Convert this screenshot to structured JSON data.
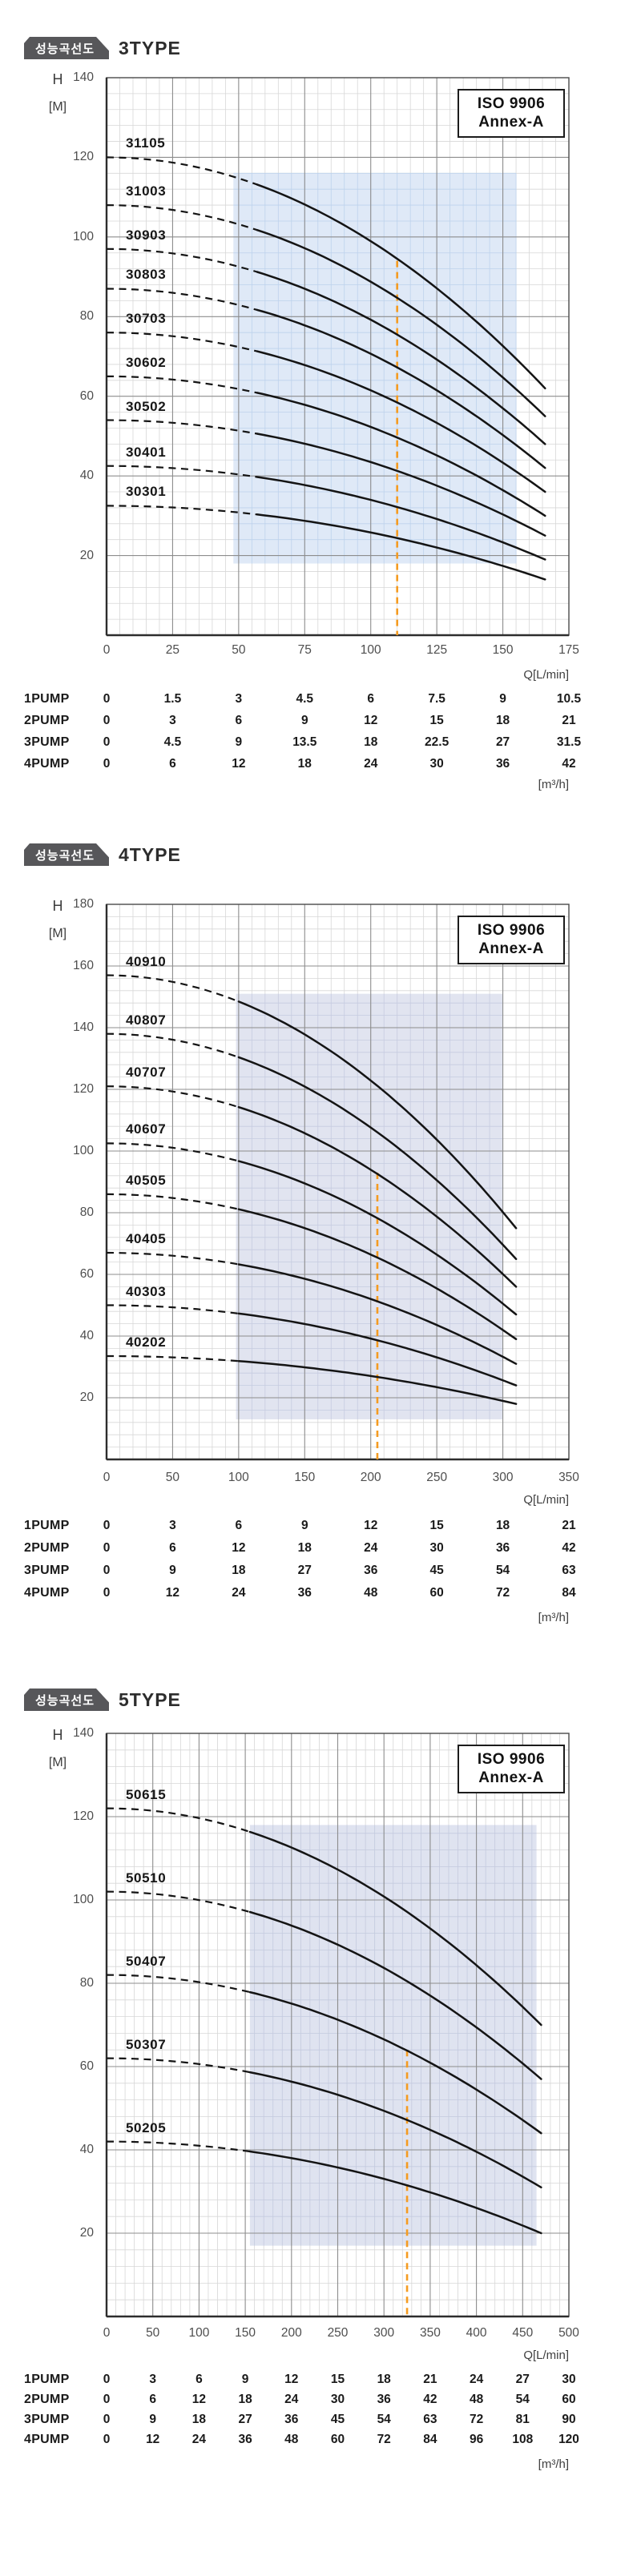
{
  "page": {
    "background": "#ffffff"
  },
  "sections": [
    {
      "badge_label": "성능곡선도",
      "title": "3TYPE",
      "iso_lines": [
        "ISO 9906",
        "Annex-A"
      ],
      "y_axis": {
        "symbol": "H",
        "unit": "[M]",
        "ticks": [
          140,
          120,
          100,
          80,
          60,
          40,
          20
        ]
      },
      "x_axis": {
        "unit": "Q[L/min]",
        "ticks": [
          0,
          25,
          50,
          75,
          100,
          125,
          150,
          175
        ]
      },
      "table": {
        "unit": "[m³/h]",
        "rows": [
          {
            "label": "1PUMP",
            "values": [
              0,
              1.5,
              3,
              4.5,
              6,
              7.5,
              9,
              10.5
            ]
          },
          {
            "label": "2PUMP",
            "values": [
              0,
              3,
              6,
              9,
              12,
              15,
              18,
              21
            ]
          },
          {
            "label": "3PUMP",
            "values": [
              0,
              4.5,
              9,
              13.5,
              18,
              22.5,
              27,
              31.5
            ]
          },
          {
            "label": "4PUMP",
            "values": [
              0,
              6,
              12,
              18,
              24,
              30,
              36,
              42
            ]
          }
        ]
      }
    },
    {
      "badge_label": "성능곡선도",
      "title": "4TYPE",
      "iso_lines": [
        "ISO 9906",
        "Annex-A"
      ],
      "y_axis": {
        "symbol": "H",
        "unit": "[M]",
        "ticks": [
          180,
          160,
          140,
          120,
          100,
          80,
          60,
          40,
          20
        ]
      },
      "x_axis": {
        "unit": "Q[L/min]",
        "ticks": [
          0,
          50,
          100,
          150,
          200,
          250,
          300,
          350
        ]
      },
      "table": {
        "unit": "[m³/h]",
        "rows": [
          {
            "label": "1PUMP",
            "values": [
              0,
              3,
              6,
              9,
              12,
              15,
              18,
              21
            ]
          },
          {
            "label": "2PUMP",
            "values": [
              0,
              6,
              12,
              18,
              24,
              30,
              36,
              42
            ]
          },
          {
            "label": "3PUMP",
            "values": [
              0,
              9,
              18,
              27,
              36,
              45,
              54,
              63
            ]
          },
          {
            "label": "4PUMP",
            "values": [
              0,
              12,
              24,
              36,
              48,
              60,
              72,
              84
            ]
          }
        ]
      }
    },
    {
      "badge_label": "성능곡선도",
      "title": "5TYPE",
      "iso_lines": [
        "ISO 9906",
        "Annex-A"
      ],
      "y_axis": {
        "symbol": "H",
        "unit": "[M]",
        "ticks": [
          140,
          120,
          100,
          80,
          60,
          40,
          20
        ]
      },
      "x_axis": {
        "unit": "Q[L/min]",
        "ticks": [
          0,
          50,
          100,
          150,
          200,
          250,
          300,
          350,
          400,
          450,
          500
        ]
      },
      "table": {
        "unit": "[m³/h]",
        "rows": [
          {
            "label": "1PUMP",
            "values": [
              0,
              3,
              6,
              9,
              12,
              15,
              18,
              21,
              24,
              27,
              30
            ]
          },
          {
            "label": "2PUMP",
            "values": [
              0,
              6,
              12,
              18,
              24,
              30,
              36,
              42,
              48,
              54,
              60
            ]
          },
          {
            "label": "3PUMP",
            "values": [
              0,
              9,
              18,
              27,
              36,
              45,
              54,
              63,
              72,
              81,
              90
            ]
          },
          {
            "label": "4PUMP",
            "values": [
              0,
              12,
              24,
              36,
              48,
              60,
              72,
              84,
              96,
              108,
              120
            ]
          }
        ]
      }
    }
  ],
  "chart_data": [
    {
      "type": "line",
      "title": "3TYPE pump performance curves",
      "xlabel": "Q[L/min]",
      "ylabel": "H [M]",
      "xlim": [
        0,
        175
      ],
      "ylim": [
        0,
        140
      ],
      "x_ticks": [
        0,
        25,
        50,
        75,
        100,
        125,
        150,
        175
      ],
      "y_ticks": [
        20,
        40,
        60,
        80,
        100,
        120,
        140
      ],
      "x_minor_step": 5,
      "y_minor_step": 4,
      "grid": true,
      "annotations": [
        "ISO 9906",
        "Annex-A"
      ],
      "q_end_lmin": 166,
      "dashed_until_lmin": 57,
      "series": [
        {
          "name": "31105",
          "shutoff_head_m": 120,
          "end_head_m": 62
        },
        {
          "name": "31003",
          "shutoff_head_m": 108,
          "end_head_m": 55
        },
        {
          "name": "30903",
          "shutoff_head_m": 97,
          "end_head_m": 48
        },
        {
          "name": "30803",
          "shutoff_head_m": 87,
          "end_head_m": 42
        },
        {
          "name": "30703",
          "shutoff_head_m": 76,
          "end_head_m": 36
        },
        {
          "name": "30602",
          "shutoff_head_m": 65,
          "end_head_m": 30
        },
        {
          "name": "30502",
          "shutoff_head_m": 54,
          "end_head_m": 25
        },
        {
          "name": "30401",
          "shutoff_head_m": 42.5,
          "end_head_m": 19
        },
        {
          "name": "30301",
          "shutoff_head_m": 32.5,
          "end_head_m": 14
        }
      ],
      "recommended_band": {
        "q": [
          48,
          155
        ],
        "h": [
          18,
          116
        ]
      },
      "rated_line": {
        "q": 110,
        "h_top": 94
      },
      "colors": {
        "curve": "#141414",
        "rated_line": "#F59B20",
        "band": "#dfe9f7",
        "band_grid": "#bdd2ec"
      }
    },
    {
      "type": "line",
      "title": "4TYPE pump performance curves",
      "xlabel": "Q[L/min]",
      "ylabel": "H [M]",
      "xlim": [
        0,
        350
      ],
      "ylim": [
        0,
        180
      ],
      "x_ticks": [
        0,
        50,
        100,
        150,
        200,
        250,
        300,
        350
      ],
      "y_ticks": [
        20,
        40,
        60,
        80,
        100,
        120,
        140,
        160,
        180
      ],
      "x_minor_step": 10,
      "y_minor_step": 4,
      "grid": true,
      "annotations": [
        "ISO 9906",
        "Annex-A"
      ],
      "q_end_lmin": 310,
      "dashed_until_lmin": 100,
      "series": [
        {
          "name": "40910",
          "shutoff_head_m": 157,
          "end_head_m": 75
        },
        {
          "name": "40807",
          "shutoff_head_m": 138,
          "end_head_m": 65
        },
        {
          "name": "40707",
          "shutoff_head_m": 121,
          "end_head_m": 56
        },
        {
          "name": "40607",
          "shutoff_head_m": 102.5,
          "end_head_m": 47
        },
        {
          "name": "40505",
          "shutoff_head_m": 86,
          "end_head_m": 39
        },
        {
          "name": "40405",
          "shutoff_head_m": 67,
          "end_head_m": 31
        },
        {
          "name": "40303",
          "shutoff_head_m": 50,
          "end_head_m": 24
        },
        {
          "name": "40202",
          "shutoff_head_m": 33.5,
          "end_head_m": 18
        }
      ],
      "recommended_band": {
        "q": [
          98,
          300
        ],
        "h": [
          13,
          151
        ]
      },
      "rated_line": {
        "q": 205,
        "h_top": 93
      },
      "colors": {
        "curve": "#141414",
        "rated_line": "#F59B20",
        "band": "#e1e4f0",
        "band_grid": "#c6cbe0"
      }
    },
    {
      "type": "line",
      "title": "5TYPE pump performance curves",
      "xlabel": "Q[L/min]",
      "ylabel": "H [M]",
      "xlim": [
        0,
        500
      ],
      "ylim": [
        0,
        140
      ],
      "x_ticks": [
        0,
        50,
        100,
        150,
        200,
        250,
        300,
        350,
        400,
        450,
        500
      ],
      "y_ticks": [
        20,
        40,
        60,
        80,
        100,
        120,
        140
      ],
      "x_minor_step": 10,
      "y_minor_step": 4,
      "grid": true,
      "annotations": [
        "ISO 9906",
        "Annex-A"
      ],
      "q_end_lmin": 470,
      "dashed_until_lmin": 155,
      "series": [
        {
          "name": "50615",
          "shutoff_head_m": 122,
          "end_head_m": 70
        },
        {
          "name": "50510",
          "shutoff_head_m": 102,
          "end_head_m": 57
        },
        {
          "name": "50407",
          "shutoff_head_m": 82,
          "end_head_m": 44
        },
        {
          "name": "50307",
          "shutoff_head_m": 62,
          "end_head_m": 31
        },
        {
          "name": "50205",
          "shutoff_head_m": 42,
          "end_head_m": 20
        }
      ],
      "recommended_band": {
        "q": [
          155,
          465
        ],
        "h": [
          17,
          118
        ]
      },
      "rated_line": {
        "q": 325,
        "h_top": 64
      },
      "colors": {
        "curve": "#141414",
        "rated_line": "#F59B20",
        "band": "#dfe3f0",
        "band_grid": "#c4cade"
      }
    }
  ]
}
